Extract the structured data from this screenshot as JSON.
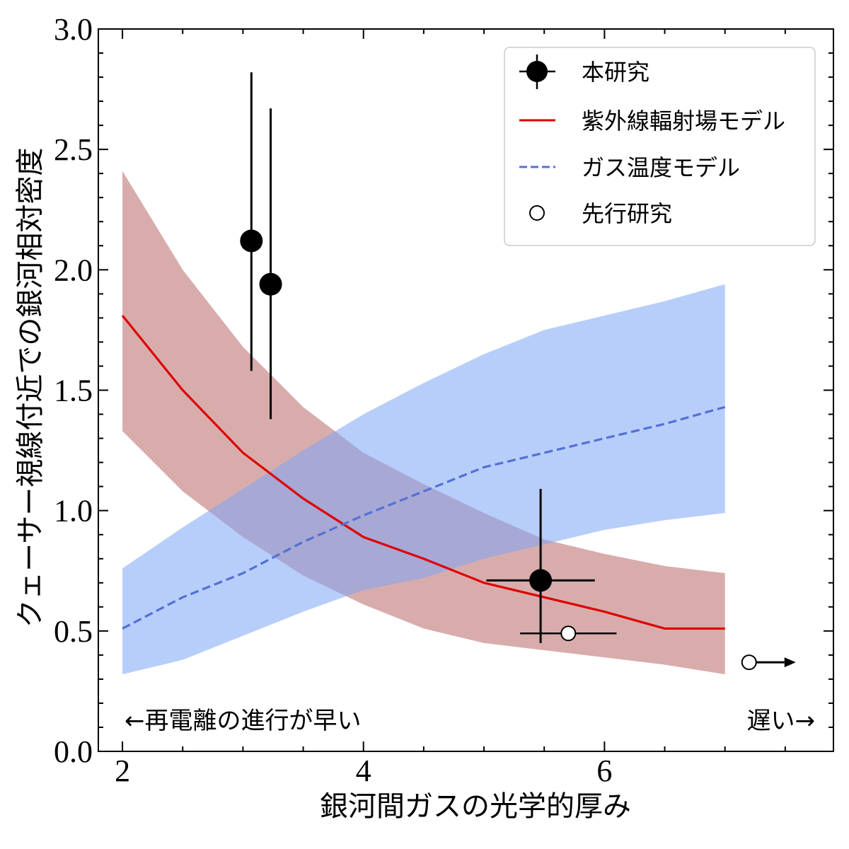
{
  "chart_data": {
    "type": "line",
    "xlabel": "銀河間ガスの光学的厚み",
    "ylabel": "クェーサー視線付近での銀河相対密度",
    "xlim": [
      1.8,
      7.9
    ],
    "ylim": [
      0.0,
      3.0
    ],
    "xticks": [
      2,
      4,
      6
    ],
    "xtick_labels": [
      "2",
      "4",
      "6"
    ],
    "yticks": [
      0.0,
      0.5,
      1.0,
      1.5,
      2.0,
      2.5,
      3.0
    ],
    "ytick_labels": [
      "0.0",
      "0.5",
      "1.0",
      "1.5",
      "2.0",
      "2.5",
      "3.0"
    ],
    "legend_position": "top-right",
    "legend": [
      {
        "label": "本研究",
        "marker": "filled-circle-errorbar"
      },
      {
        "label": "紫外線輻射場モデル",
        "marker": "solid-line"
      },
      {
        "label": "ガス温度モデル",
        "marker": "dashed-line"
      },
      {
        "label": "先行研究",
        "marker": "open-circle"
      }
    ],
    "annotations": {
      "left": "←再電離の進行が早い",
      "right": "遅い→"
    },
    "colors": {
      "uv_line": "#dd0000",
      "uv_band": "#b35a5a",
      "gas_line": "#5470d6",
      "gas_band": "#7da6f5",
      "points": "#000000"
    },
    "series": [
      {
        "name": "紫外線輻射場モデル",
        "style": "solid",
        "x": [
          2.0,
          2.5,
          3.0,
          3.5,
          4.0,
          4.5,
          5.0,
          5.5,
          6.0,
          6.5,
          7.0
        ],
        "y": [
          1.81,
          1.5,
          1.24,
          1.05,
          0.89,
          0.8,
          0.7,
          0.64,
          0.58,
          0.51,
          0.51
        ],
        "band_lower": [
          1.33,
          1.08,
          0.89,
          0.73,
          0.61,
          0.51,
          0.45,
          0.42,
          0.39,
          0.36,
          0.32
        ],
        "band_upper": [
          2.41,
          2.0,
          1.68,
          1.43,
          1.24,
          1.11,
          0.99,
          0.88,
          0.82,
          0.77,
          0.74
        ]
      },
      {
        "name": "ガス温度モデル",
        "style": "dashed",
        "x": [
          2.0,
          2.5,
          3.0,
          3.5,
          4.0,
          4.5,
          5.0,
          5.5,
          6.0,
          6.5,
          7.0
        ],
        "y": [
          0.51,
          0.64,
          0.74,
          0.87,
          0.98,
          1.08,
          1.18,
          1.24,
          1.3,
          1.36,
          1.43
        ],
        "band_lower": [
          0.32,
          0.38,
          0.48,
          0.58,
          0.67,
          0.72,
          0.8,
          0.86,
          0.92,
          0.96,
          0.99
        ],
        "band_upper": [
          0.76,
          0.93,
          1.09,
          1.25,
          1.4,
          1.53,
          1.65,
          1.75,
          1.81,
          1.87,
          1.94
        ]
      }
    ],
    "points_this_work": [
      {
        "x": 3.07,
        "y": 2.12,
        "yerr_low": 0.54,
        "yerr_high": 0.7
      },
      {
        "x": 3.23,
        "y": 1.94,
        "yerr_low": 0.56,
        "yerr_high": 0.73
      },
      {
        "x": 5.47,
        "y": 0.71,
        "xerr_low": 0.45,
        "xerr_high": 0.45,
        "yerr_low": 0.26,
        "yerr_high": 0.38
      }
    ],
    "points_previous": [
      {
        "x": 5.7,
        "y": 0.49,
        "xerr_low": 0.4,
        "xerr_high": 0.4
      },
      {
        "x": 7.2,
        "y": 0.37,
        "lower_limit_x": true
      }
    ]
  }
}
